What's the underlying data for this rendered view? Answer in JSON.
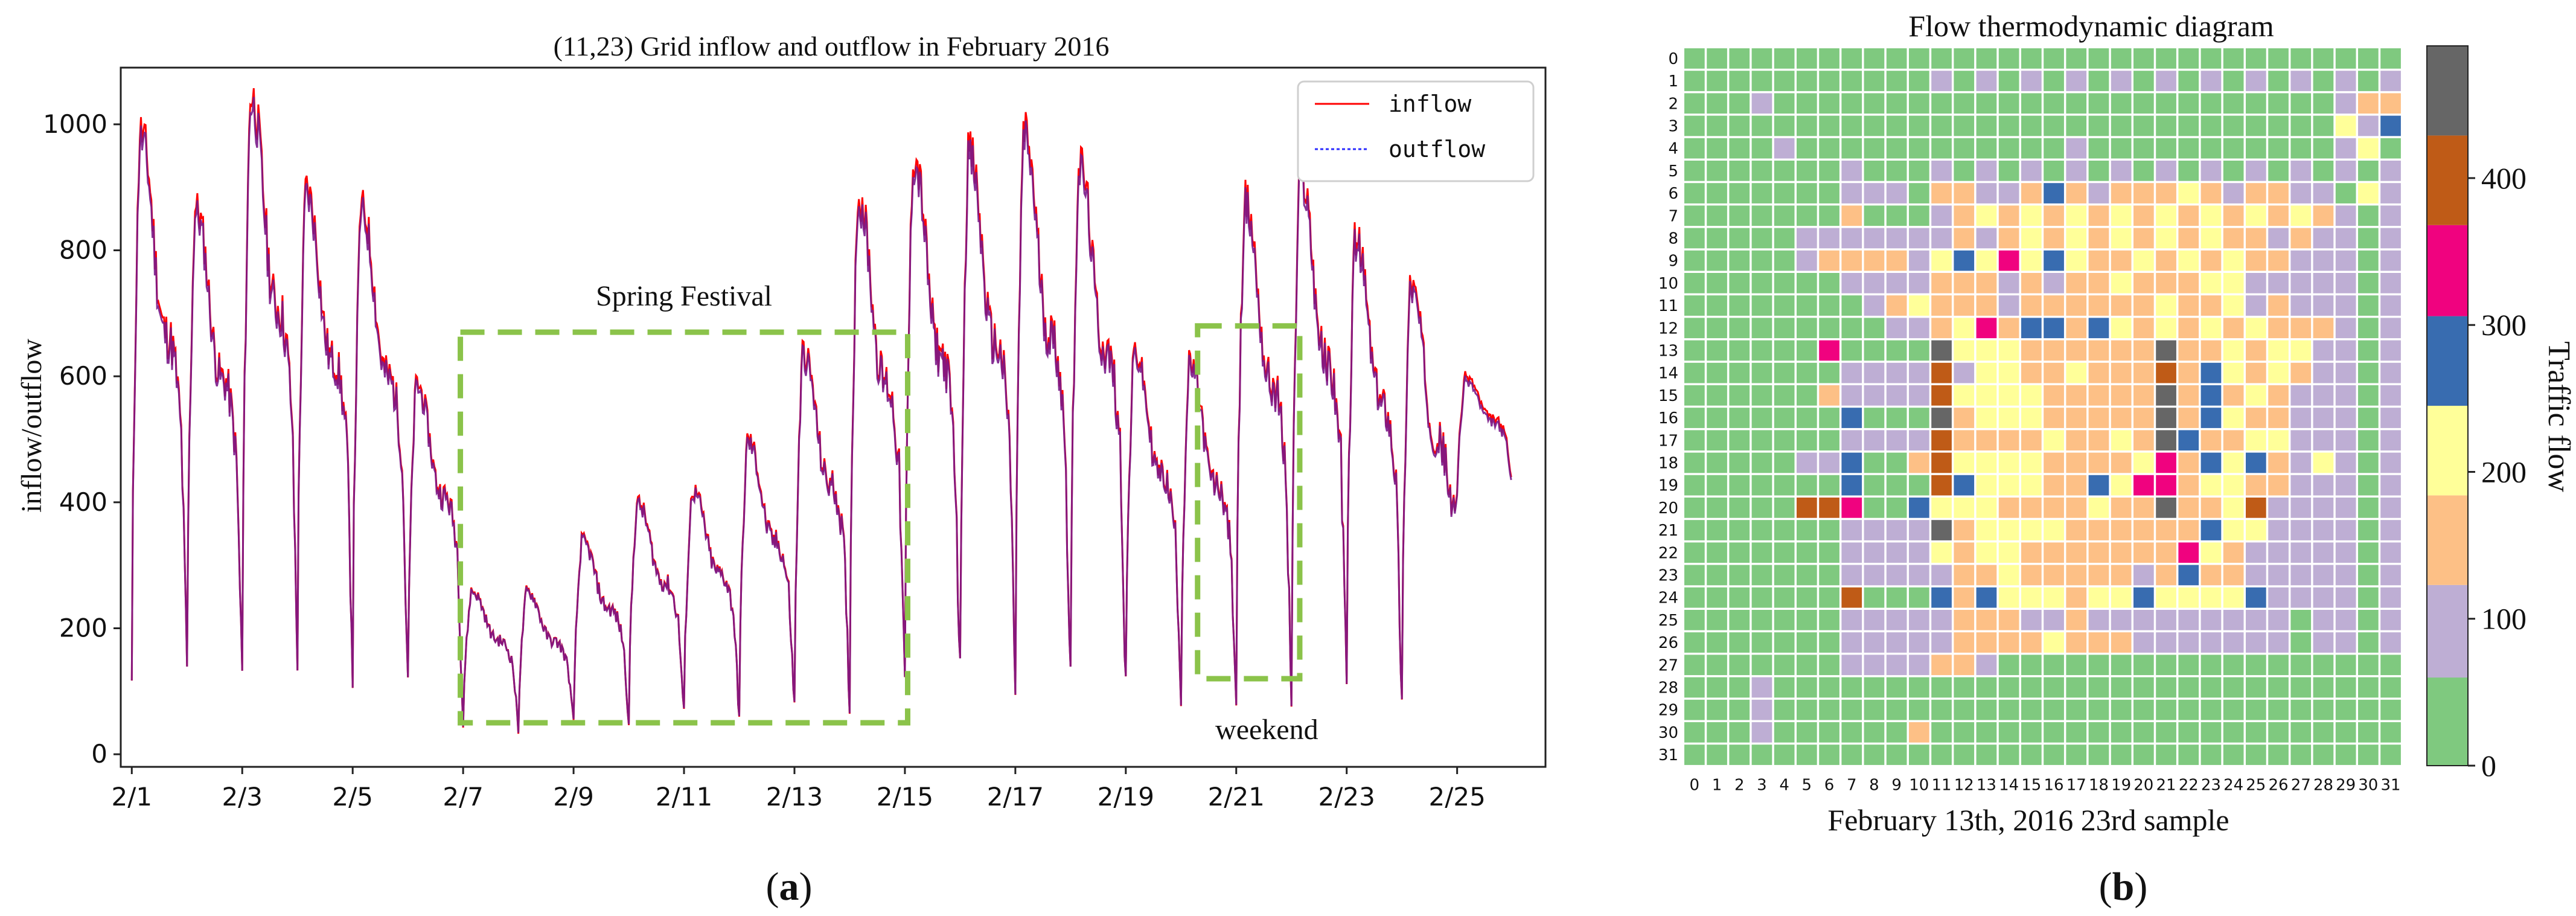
{
  "panel_a": {
    "caption": "a",
    "chart_data": {
      "type": "line",
      "title": "(11,23) Grid inflow and outflow in February 2016",
      "xlabel": "",
      "ylabel": "inflow/outflow",
      "xlim": [
        0.8,
        26.6
      ],
      "ylim": [
        -20,
        1090
      ],
      "x_ticks": [
        1,
        3,
        5,
        7,
        9,
        11,
        13,
        15,
        17,
        19,
        21,
        23,
        25
      ],
      "x_tick_labels": [
        "2/1",
        "2/3",
        "2/5",
        "2/7",
        "2/9",
        "2/11",
        "2/13",
        "2/15",
        "2/17",
        "2/19",
        "2/21",
        "2/23",
        "2/25"
      ],
      "y_ticks": [
        0,
        200,
        400,
        600,
        800,
        1000
      ],
      "legend": [
        "inflow",
        "outflow"
      ],
      "legend_position": "top-right",
      "series_colors": {
        "inflow": "#ff0000",
        "outflow": "#2b2bff",
        "overlap": "#7a1a8a"
      },
      "daily_peaks": [
        990,
        870,
        1050,
        900,
        870,
        590,
        260,
        260,
        340,
        400,
        420,
        500,
        640,
        890,
        950,
        960,
        990,
        940,
        640,
        620,
        880,
        930,
        820,
        750,
        600
      ],
      "daily_troughs": [
        105,
        130,
        125,
        155,
        135,
        105,
        45,
        40,
        45,
        55,
        60,
        60,
        70,
        80,
        100,
        120,
        105,
        120,
        110,
        95,
        85,
        90,
        110,
        75,
        415
      ],
      "annotations": [
        {
          "text": "Spring Festival",
          "box_x": [
            6.95,
            15.05
          ],
          "box_y": [
            50,
            670
          ]
        },
        {
          "text": "weekend",
          "box_x": [
            20.3,
            22.15
          ],
          "box_y": [
            120,
            680
          ]
        }
      ]
    }
  },
  "panel_b": {
    "caption": "b",
    "chart_data": {
      "type": "heatmap",
      "title": "Flow thermodynamic diagram",
      "xlabel": "February 13th, 2016 23rd sample",
      "ylabel": "",
      "x_ticks": [
        "0",
        "1",
        "2",
        "3",
        "4",
        "5",
        "6",
        "7",
        "8",
        "9",
        "10",
        "11",
        "12",
        "13",
        "14",
        "15",
        "16",
        "17",
        "18",
        "19",
        "20",
        "21",
        "22",
        "23",
        "24",
        "25",
        "26",
        "27",
        "28",
        "29",
        "30",
        "31"
      ],
      "y_ticks": [
        "0",
        "1",
        "2",
        "3",
        "4",
        "5",
        "6",
        "7",
        "8",
        "9",
        "10",
        "11",
        "12",
        "13",
        "14",
        "15",
        "16",
        "17",
        "18",
        "19",
        "20",
        "21",
        "22",
        "23",
        "24",
        "25",
        "26",
        "27",
        "28",
        "29",
        "30",
        "31"
      ],
      "colorbar_label": "Traffic flow",
      "colorbar_ticks": [
        0,
        100,
        200,
        300,
        400
      ],
      "colorbar_range": [
        0,
        490
      ],
      "levels": [
        {
          "range": [
            0,
            60
          ],
          "color": "#7fc97f"
        },
        {
          "range": [
            60,
            123
          ],
          "color": "#beaed4"
        },
        {
          "range": [
            123,
            184
          ],
          "color": "#fdc086"
        },
        {
          "range": [
            184,
            245
          ],
          "color": "#ffff99"
        },
        {
          "range": [
            245,
            306
          ],
          "color": "#386cb0"
        },
        {
          "range": [
            306,
            368
          ],
          "color": "#f0027f"
        },
        {
          "range": [
            368,
            429
          ],
          "color": "#bf5b17"
        },
        {
          "range": [
            429,
            490
          ],
          "color": "#666666"
        }
      ],
      "grid_levels": [
        "00000000000000000000000000000000",
        "00000000000101010101010101010101",
        "00010000000000000000000000000122",
        "00000000000000000000000000000314",
        "00001000000000000100000000000130",
        "00000001000101010101010101010101",
        "00000001110221124212223212211031",
        "00000002000123232323232323232101",
        "00000111111121232323232322121101",
        "00000122221343534322323232211101",
        "00000001111222121223222331111101",
        "00000000123222122222232231211101",
        "00000000011235244243232323222101",
        "00000050000733322222272232331101",
        "00000001111613322322262432321101",
        "00000021111633332222272423211101",
        "00000004000723332222272432211101",
        "00000001111622223223274223311101",
        "00000114002633332222352434213101",
        "00000004000643332243552332211101",
        "00000665004333222232272236111101",
        "00000001111723333222222433111101",
        "00000001111323322222225321111101",
        "00000001111122322222124221111101",
        "00000006000424333233433334111101",
        "00000001111122211211111111101101",
        "00000001111122223222111111101101",
        "00000001111221000000000000000000",
        "00010000000000000000000000000000",
        "00010000000000000000000000000000",
        "00010000002000000000000000000000",
        "00000000000000000000000000000000"
      ]
    }
  }
}
